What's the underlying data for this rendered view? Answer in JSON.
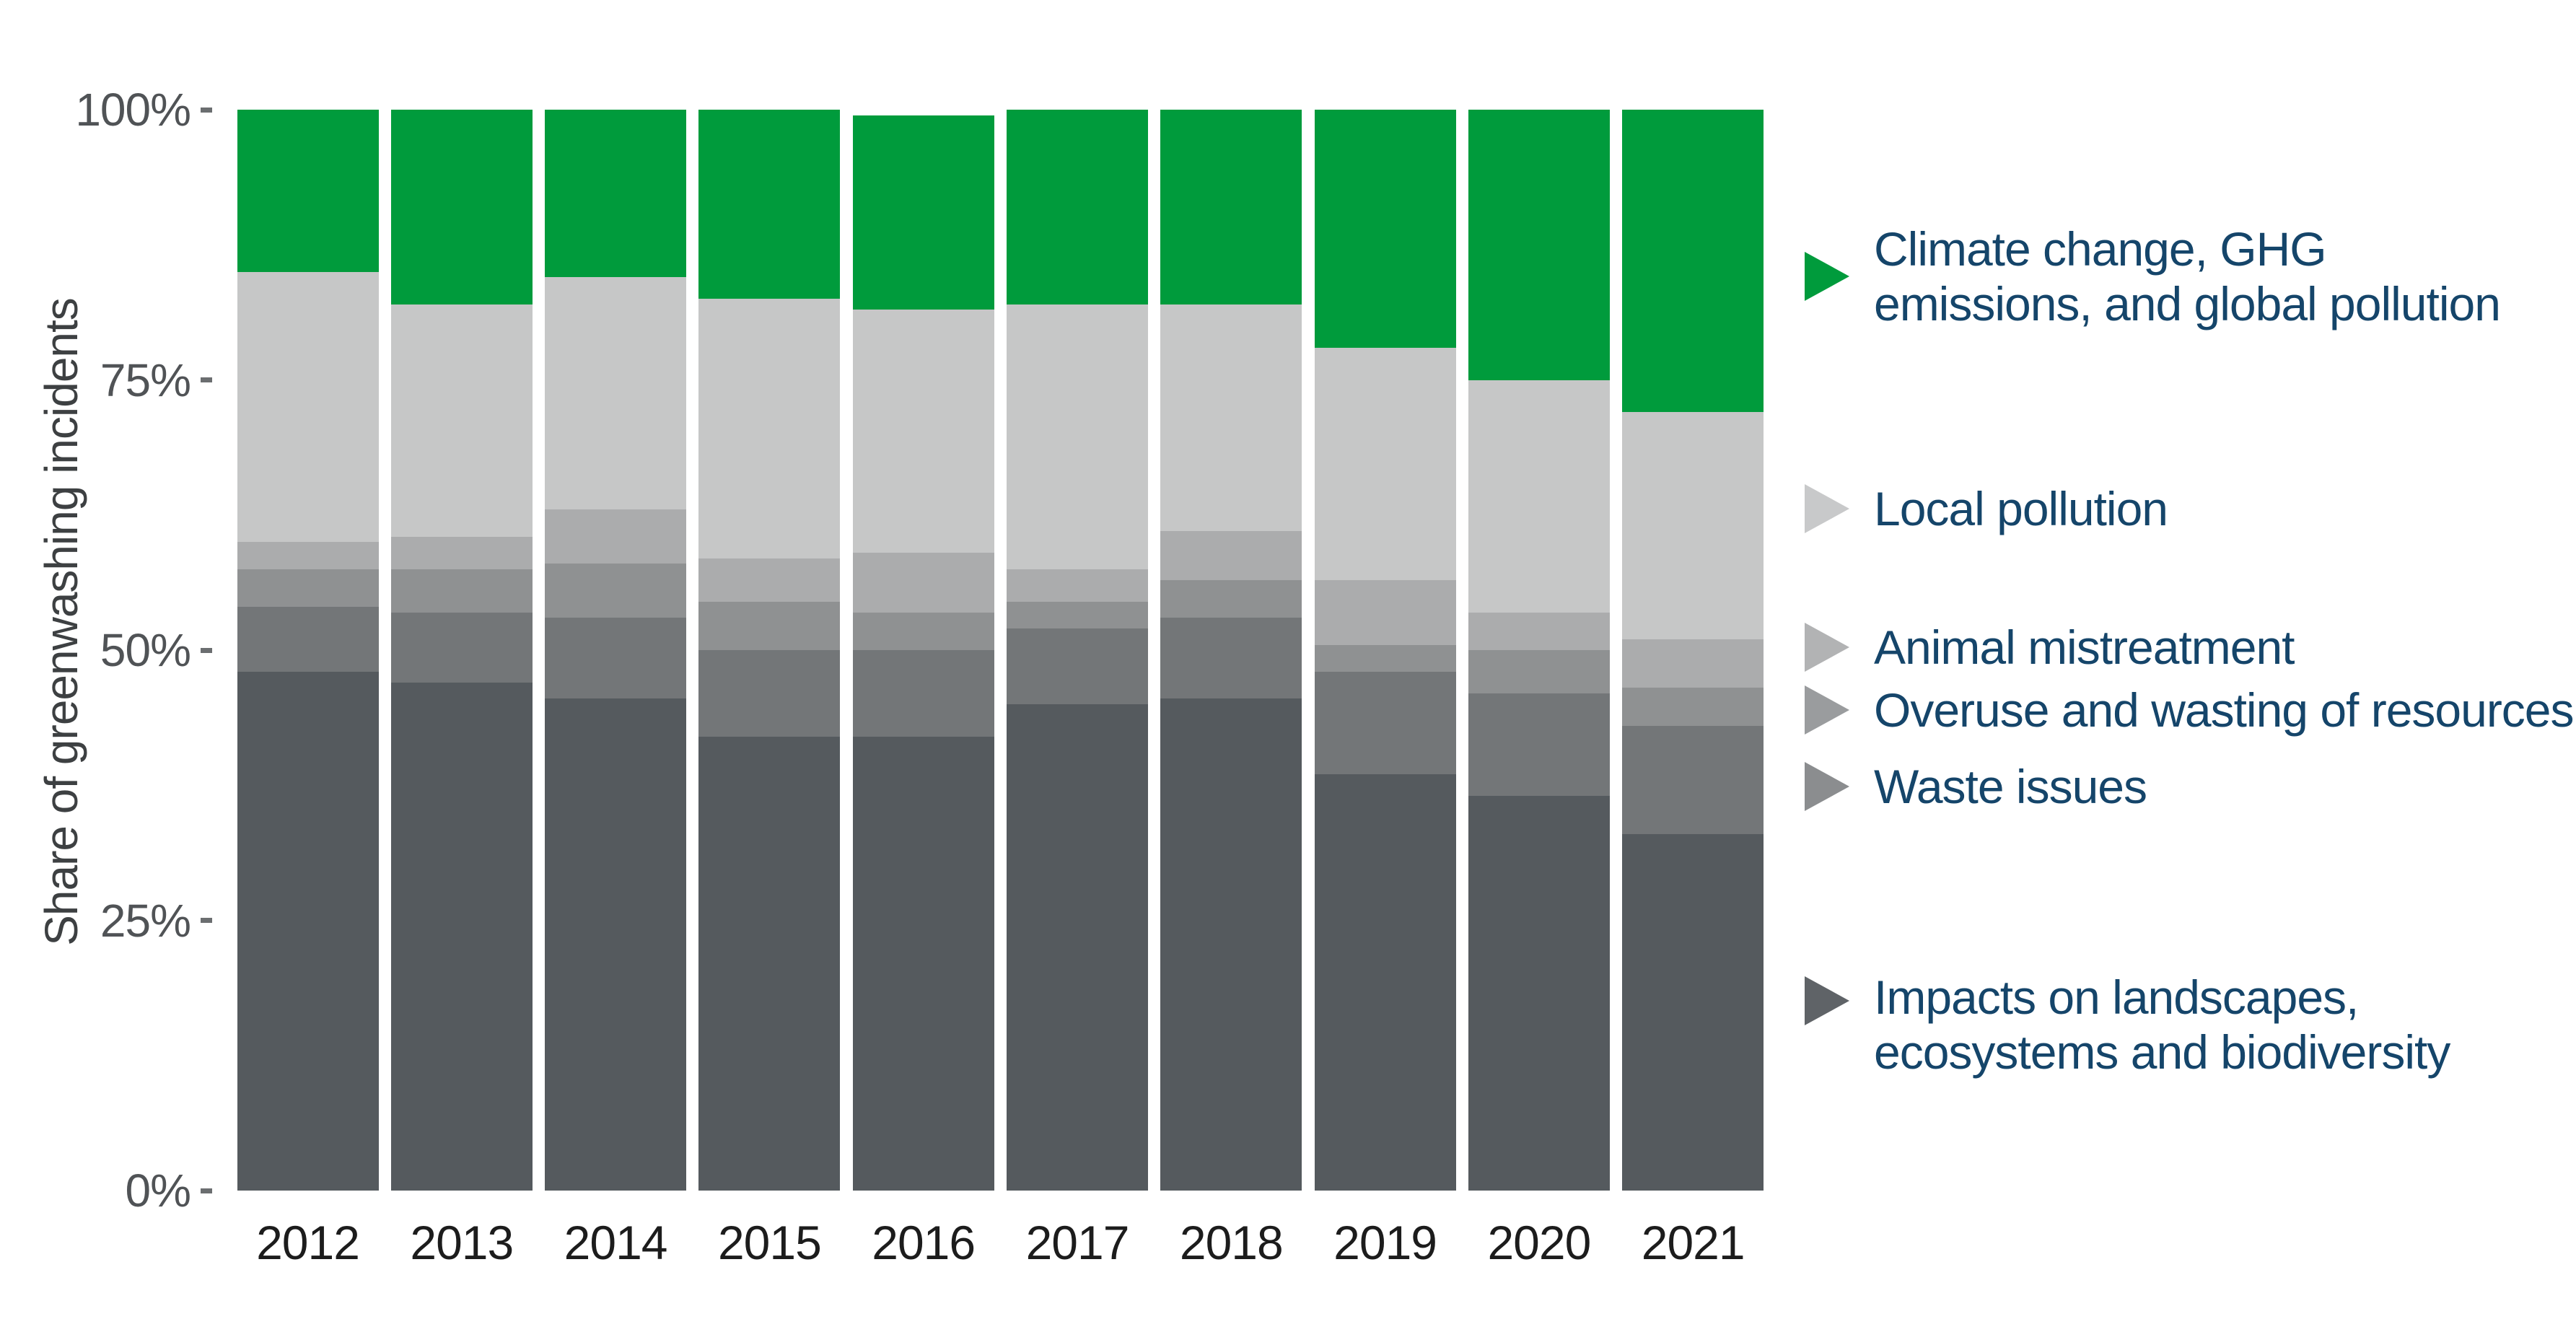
{
  "chart_data": {
    "type": "bar",
    "stacked": true,
    "orientation": "vertical",
    "title": "",
    "ylabel": "Share of greenwashing incidents",
    "xlabel": "",
    "ylim": [
      0,
      100
    ],
    "grid": false,
    "legend_position": "right",
    "categories": [
      "2012",
      "2013",
      "2014",
      "2015",
      "2016",
      "2017",
      "2018",
      "2019",
      "2020",
      "2021"
    ],
    "series": [
      {
        "name": "Impacts on landscapes, ecosystems and biodiversity",
        "color": "#555a5e",
        "values": [
          48,
          47,
          45.5,
          42,
          42,
          45,
          45.5,
          38.5,
          36.5,
          33
        ]
      },
      {
        "name": "Waste issues",
        "color": "#737678",
        "values": [
          6,
          6.5,
          7.5,
          8,
          8,
          7,
          7.5,
          9.5,
          9.5,
          10
        ]
      },
      {
        "name": "Overuse and wasting of resources",
        "color": "#8f9192",
        "values": [
          3.5,
          4,
          5,
          4.5,
          3.5,
          2.5,
          3.5,
          2.5,
          4,
          3.5
        ]
      },
      {
        "name": "Animal mistreatment",
        "color": "#abacad",
        "values": [
          2.5,
          3,
          5,
          4,
          5.5,
          3,
          4.5,
          6,
          3.5,
          4.5
        ]
      },
      {
        "name": "Local pollution",
        "color": "#c6c7c7",
        "values": [
          25,
          21.5,
          21.5,
          24,
          22.5,
          24.5,
          21,
          21.5,
          21.5,
          21
        ]
      },
      {
        "name": "Climate change, GHG emissions, and global pollution",
        "color": "#009b3c",
        "values": [
          15,
          18,
          15.5,
          17.5,
          18,
          18,
          18,
          22,
          25,
          28
        ]
      }
    ],
    "y_ticks": [
      {
        "label": "100%",
        "value": 100
      },
      {
        "label": "75%",
        "value": 75
      },
      {
        "label": "50%",
        "value": 50
      },
      {
        "label": "25%",
        "value": 25
      },
      {
        "label": "0%",
        "value": 0
      }
    ],
    "legend": [
      {
        "lines": [
          "Climate change, GHG",
          "emissions, and global pollution"
        ],
        "marker_color": "#009b3c",
        "marker_cy": 383,
        "text_center_y": 383
      },
      {
        "lines": [
          "Local pollution"
        ],
        "marker_color": "#c8c9ca",
        "marker_cy": 705,
        "text_center_y": 705
      },
      {
        "lines": [
          "Animal mistreatment"
        ],
        "marker_color": "#b2b3b4",
        "marker_cy": 897,
        "text_center_y": 897
      },
      {
        "lines": [
          "Overuse and wasting of resources"
        ],
        "marker_color": "#9a9c9e",
        "marker_cy": 984,
        "text_center_y": 984
      },
      {
        "lines": [
          "Waste issues"
        ],
        "marker_color": "#8b8d8f",
        "marker_cy": 1090,
        "text_center_y": 1090
      },
      {
        "lines": [
          "Impacts on landscapes,",
          "ecosystems and biodiversity"
        ],
        "marker_color": "#5f6367",
        "marker_cy": 1387,
        "text_center_y": 1420
      }
    ]
  }
}
